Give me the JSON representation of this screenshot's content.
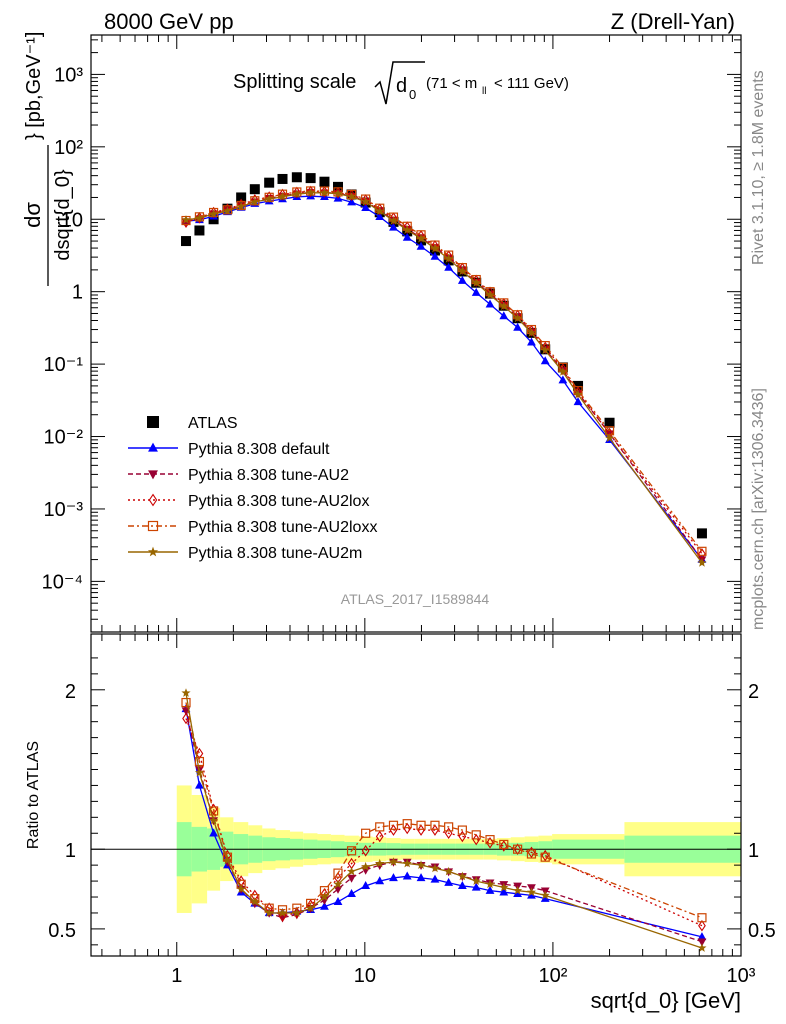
{
  "header": {
    "left": "8000 GeV pp",
    "right": "Z (Drell-Yan)"
  },
  "side_labels": {
    "rivet": "Rivet 3.1.10, ≥ 1.8M events",
    "mcplots": "mcplots.cern.ch [arXiv:1306.3436]"
  },
  "chart_data": [
    {
      "type": "scatter",
      "title": "Splitting scale √d₀ (71 < mℓℓ < 111 GeV)",
      "ylabel": "dσ / dsqrt{d_0} [pb,GeV⁻¹]",
      "xlabel": "sqrt{d_0} [GeV]",
      "x_scale": "log",
      "y_scale": "log",
      "xlim": [
        0.35,
        1000
      ],
      "ylim": [
        2e-05,
        3500
      ],
      "x_tick_labels": [
        "1",
        "10",
        "10²",
        "10³"
      ],
      "y_tick_labels": [
        "10⁻⁴",
        "10⁻³",
        "10⁻²",
        "10⁻¹",
        "1",
        "10",
        "10²",
        "10³"
      ],
      "watermark": "ATLAS_2017_I1589844",
      "legend_position": "bottom-left",
      "x": [
        1.12,
        1.32,
        1.57,
        1.86,
        2.2,
        2.6,
        3.1,
        3.65,
        4.35,
        5.15,
        6.1,
        7.2,
        8.5,
        10.1,
        12.0,
        14.2,
        16.8,
        19.9,
        23.6,
        27.9,
        33.0,
        39.1,
        46.3,
        54.8,
        64.9,
        76.9,
        91.0,
        113,
        136,
        200,
        620
      ],
      "series": [
        {
          "name": "ATLAS",
          "marker": "square",
          "color": "#000000",
          "values": [
            5,
            7,
            10,
            14,
            20,
            26,
            32,
            36,
            38,
            37,
            33,
            28,
            22,
            17,
            12.5,
            9.2,
            6.8,
            5.1,
            3.7,
            2.7,
            1.9,
            1.33,
            0.94,
            0.64,
            0.43,
            0.27,
            0.16,
            0.09,
            0.05,
            0.0155,
            0.00046
          ]
        },
        {
          "name": "Pythia 8.308 default",
          "marker": "triangle-up",
          "color": "#0000ff",
          "values": [
            9.4,
            9.8,
            11.0,
            12.6,
            14.5,
            16.4,
            17.8,
            19.0,
            20.4,
            20.8,
            20.4,
            19.4,
            17.2,
            14.4,
            10.8,
            7.7,
            5.6,
            4.2,
            3.05,
            2.15,
            1.42,
            0.97,
            0.67,
            0.46,
            0.32,
            0.2,
            0.11,
            0.06,
            0.03,
            0.009,
            0.0002
          ]
        },
        {
          "name": "Pythia 8.308 tune-AU2",
          "marker": "triangle-down",
          "color": "#990033",
          "values": [
            9.3,
            10.2,
            12.0,
            13.5,
            15.3,
            17.5,
            19.5,
            21,
            22.5,
            23.5,
            23.3,
            22.8,
            20.8,
            17.8,
            13.2,
            9.8,
            7.3,
            5.6,
            4.1,
            2.95,
            1.98,
            1.35,
            0.93,
            0.65,
            0.45,
            0.28,
            0.16,
            0.082,
            0.04,
            0.011,
            0.0002
          ]
        },
        {
          "name": "Pythia 8.308 tune-AU2lox",
          "marker": "diamond-open",
          "color": "#cc0000",
          "values": [
            9.1,
            10.5,
            12.4,
            13.8,
            16.0,
            18.5,
            20.3,
            22,
            23.5,
            24.2,
            24.0,
            23.3,
            21.5,
            18.5,
            13.8,
            10.4,
            7.8,
            5.9,
            4.3,
            3.1,
            2.1,
            1.43,
            0.98,
            0.68,
            0.47,
            0.29,
            0.17,
            0.085,
            0.041,
            0.011,
            0.00024
          ]
        },
        {
          "name": "Pythia 8.308 tune-AU2loxx",
          "marker": "square-open",
          "color": "#cc4400",
          "values": [
            9.6,
            10.8,
            12.4,
            13.5,
            15.5,
            18.0,
            20.1,
            22.2,
            23.8,
            24.6,
            24.5,
            23.9,
            22.0,
            19.0,
            14.2,
            10.7,
            8.0,
            6.1,
            4.4,
            3.2,
            2.15,
            1.47,
            1.0,
            0.7,
            0.48,
            0.3,
            0.18,
            0.09,
            0.043,
            0.012,
            0.00026
          ]
        },
        {
          "name": "Pythia 8.308 tune-AU2m",
          "marker": "star",
          "color": "#996600",
          "values": [
            9.8,
            10.4,
            11.8,
            13.0,
            15.0,
            17.3,
            19.0,
            20.5,
            22.2,
            23.2,
            23.1,
            22.5,
            20.5,
            17.4,
            12.9,
            9.5,
            7.1,
            5.4,
            3.95,
            2.85,
            1.92,
            1.32,
            0.9,
            0.63,
            0.43,
            0.27,
            0.155,
            0.078,
            0.038,
            0.0095,
            0.00018
          ]
        }
      ]
    },
    {
      "type": "line",
      "ylabel": "Ratio to ATLAS",
      "xlabel": "sqrt{d_0} [GeV]",
      "x_scale": "log",
      "xlim": [
        0.35,
        1000
      ],
      "ylim": [
        0.33,
        2.35
      ],
      "y_tick_labels": [
        "0.5",
        "1",
        "2"
      ],
      "reference_line": 1,
      "uncertainty_bands": {
        "edges": [
          1.0,
          1.2,
          1.45,
          1.7,
          2.0,
          2.4,
          2.85,
          3.35,
          4.0,
          4.7,
          5.6,
          6.6,
          7.8,
          9.3,
          11.0,
          13.0,
          15.5,
          18.3,
          21.7,
          25.7,
          30.4,
          36.0,
          42.6,
          50.4,
          59.7,
          70.7,
          83.7,
          99.0,
          240,
          1000
        ],
        "inner_half_width": [
          0.17,
          0.14,
          0.13,
          0.11,
          0.095,
          0.085,
          0.075,
          0.07,
          0.065,
          0.06,
          0.055,
          0.05,
          0.045,
          0.04,
          0.04,
          0.038,
          0.035,
          0.035,
          0.035,
          0.035,
          0.035,
          0.035,
          0.035,
          0.04,
          0.04,
          0.045,
          0.05,
          0.06,
          0.085
        ],
        "outer_half_width": [
          0.4,
          0.34,
          0.26,
          0.2,
          0.17,
          0.15,
          0.13,
          0.12,
          0.11,
          0.1,
          0.095,
          0.09,
          0.085,
          0.08,
          0.075,
          0.07,
          0.065,
          0.065,
          0.065,
          0.065,
          0.065,
          0.065,
          0.065,
          0.07,
          0.075,
          0.08,
          0.085,
          0.095,
          0.17
        ],
        "inner_color": "#99ff99",
        "outer_color": "#ffff88"
      },
      "series": [
        {
          "name": "Pythia 8.308 default",
          "values": [
            1.88,
            1.4,
            1.1,
            0.9,
            0.73,
            0.66,
            0.6,
            0.6,
            0.61,
            0.62,
            0.64,
            0.67,
            0.72,
            0.77,
            0.8,
            0.82,
            0.83,
            0.82,
            0.81,
            0.79,
            0.77,
            0.76,
            0.74,
            0.73,
            0.72,
            0.71,
            0.69,
            null,
            null,
            null,
            0.45
          ]
        },
        {
          "name": "Pythia 8.308 tune-AU2",
          "values": [
            1.87,
            1.5,
            1.18,
            0.92,
            0.75,
            0.66,
            0.6,
            0.57,
            0.59,
            0.63,
            0.68,
            0.75,
            0.82,
            0.87,
            0.9,
            0.92,
            0.92,
            0.9,
            0.89,
            0.86,
            0.83,
            0.81,
            0.79,
            0.78,
            0.77,
            0.76,
            0.74,
            null,
            null,
            null,
            0.42
          ]
        },
        {
          "name": "Pythia 8.308 tune-AU2lox",
          "values": [
            1.82,
            1.6,
            1.25,
            0.96,
            0.8,
            0.71,
            0.63,
            0.58,
            0.6,
            0.65,
            0.72,
            0.82,
            0.91,
            0.99,
            1.08,
            1.12,
            1.13,
            1.12,
            1.12,
            1.1,
            1.08,
            1.06,
            1.04,
            1.02,
            1.0,
            0.98,
            0.96,
            null,
            null,
            null,
            0.52
          ]
        },
        {
          "name": "Pythia 8.308 tune-AU2loxx",
          "values": [
            1.92,
            1.55,
            1.24,
            0.95,
            0.78,
            0.69,
            0.63,
            0.62,
            0.63,
            0.66,
            0.74,
            0.85,
            0.99,
            1.1,
            1.14,
            1.15,
            1.16,
            1.15,
            1.15,
            1.14,
            1.12,
            1.09,
            1.06,
            1.03,
            1.0,
            0.97,
            0.95,
            null,
            null,
            null,
            0.57
          ]
        },
        {
          "name": "Pythia 8.308 tune-AU2m",
          "values": [
            1.98,
            1.48,
            1.18,
            0.93,
            0.75,
            0.67,
            0.6,
            0.6,
            0.6,
            0.63,
            0.7,
            0.78,
            0.86,
            0.89,
            0.91,
            0.92,
            0.91,
            0.9,
            0.88,
            0.86,
            0.83,
            0.8,
            0.78,
            0.76,
            0.74,
            0.73,
            0.71,
            null,
            null,
            null,
            0.38
          ]
        }
      ]
    }
  ]
}
